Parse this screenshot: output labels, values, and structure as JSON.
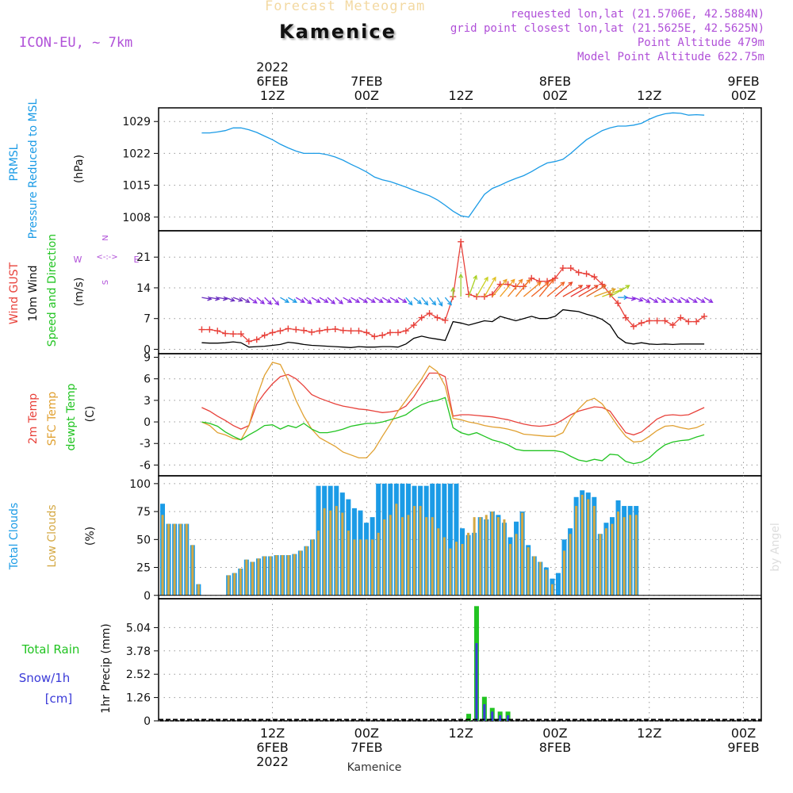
{
  "header": {
    "title_faded": "Forecast Meteogram",
    "station": "Kamenice",
    "model": "ICON-EU, ~ 7km",
    "requested": "requested lon,lat (21.5706E, 42.5884N)",
    "gridpoint": "grid point closest lon,lat (21.5625E, 42.5625N)",
    "point_alt": "Point Altitude 479m",
    "model_alt": "Model Point Altitude 622.75m",
    "watermark": "by Angel",
    "footer_station": "Kamenice"
  },
  "colors": {
    "pressure": "#1b9be6",
    "gust": "#e8413a",
    "wind": "#000000",
    "temp2m": "#e8413a",
    "sfc": "#e0a030",
    "dewpt": "#22c422",
    "total_clouds": "#1b9be6",
    "low_clouds": "#d4a843",
    "rain": "#22c422",
    "snow": "#3a3ad8",
    "purple": "#b050d8",
    "grid": "#999999"
  },
  "chart_data": {
    "type": "meteogram",
    "x_hours": {
      "start": 0,
      "end": 64,
      "step": 1,
      "note": "hours from 6FEB 2022 03Z"
    },
    "time_axis": {
      "top": [
        {
          "h": 9,
          "lines": [
            "2022",
            "6FEB",
            "12Z"
          ]
        },
        {
          "h": 21,
          "lines": [
            "7FEB",
            "00Z"
          ]
        },
        {
          "h": 33,
          "lines": [
            "12Z"
          ]
        },
        {
          "h": 45,
          "lines": [
            "8FEB",
            "00Z"
          ]
        },
        {
          "h": 57,
          "lines": [
            "12Z"
          ]
        },
        {
          "h": 69,
          "lines": [
            "9FEB",
            "00Z"
          ]
        }
      ],
      "bottom": [
        {
          "h": 9,
          "lines": [
            "12Z",
            "6FEB",
            "2022"
          ]
        },
        {
          "h": 21,
          "lines": [
            "00Z",
            "7FEB"
          ]
        },
        {
          "h": 33,
          "lines": [
            "12Z"
          ]
        },
        {
          "h": 45,
          "lines": [
            "00Z",
            "8FEB"
          ]
        },
        {
          "h": 57,
          "lines": [
            "12Z"
          ]
        },
        {
          "h": 69,
          "lines": [
            "00Z",
            "9FEB"
          ]
        }
      ]
    },
    "panels": [
      {
        "id": "pressure",
        "type": "line",
        "labels": [
          "PRMSL",
          "Pressure Reduced to MSL"
        ],
        "unit": "(hPa)",
        "ylim": [
          1005,
          1032
        ],
        "yticks": [
          1008,
          1015,
          1022,
          1029
        ],
        "series": [
          {
            "name": "PRMSL",
            "values": [
              1026.5,
              1026.5,
              1026.7,
              1027,
              1027.6,
              1027.6,
              1027.2,
              1026.6,
              1025.8,
              1025,
              1024,
              1023.2,
              1022.5,
              1022,
              1022,
              1022,
              1021.7,
              1021.2,
              1020.5,
              1019.6,
              1018.8,
              1017.9,
              1016.8,
              1016.2,
              1015.8,
              1015.2,
              1014.6,
              1013.9,
              1013.3,
              1012.7,
              1011.8,
              1010.6,
              1009.3,
              1008.3,
              1008,
              1010.5,
              1013,
              1014.3,
              1015,
              1015.8,
              1016.5,
              1017.1,
              1018,
              1019,
              1019.9,
              1020.2,
              1020.7,
              1022,
              1023.5,
              1025,
              1026,
              1027,
              1027.6,
              1028,
              1028,
              1028.2,
              1028.6,
              1029.5,
              1030.2,
              1030.7,
              1030.9,
              1030.8,
              1030.4,
              1030.5,
              1030.4
            ]
          }
        ]
      },
      {
        "id": "wind",
        "type": "line",
        "labels": [
          "Wind GUST",
          "10m Wind",
          "Speed and Direction"
        ],
        "unit": "(m/s)",
        "ylim": [
          -1,
          27
        ],
        "yticks": [
          0,
          7,
          14,
          21
        ],
        "compass": {
          "n": "N",
          "s": "S",
          "e": "E",
          "w": "W",
          "arrow": "<-:->"
        },
        "series": [
          {
            "name": "Wind GUST",
            "values": [
              4.5,
              4.5,
              4.2,
              3.6,
              3.5,
              3.5,
              1.8,
              2.2,
              3.2,
              3.8,
              4.2,
              4.7,
              4.5,
              4.3,
              3.9,
              4.2,
              4.5,
              4.6,
              4.3,
              4.2,
              4.2,
              3.8,
              2.9,
              3.2,
              3.8,
              3.8,
              4.2,
              5.5,
              7.2,
              8.2,
              7.2,
              6.6,
              12,
              24.5,
              12.5,
              12,
              12,
              12.5,
              14.8,
              14.8,
              14.3,
              14.3,
              16.2,
              15.5,
              15.5,
              16.2,
              18.5,
              18.5,
              17.5,
              17.2,
              16.5,
              14.8,
              12.5,
              10.5,
              7.2,
              5.2,
              6,
              6.5,
              6.5,
              6.5,
              5.5,
              7.2,
              6.3,
              6.3,
              7.5
            ]
          },
          {
            "name": "10m Wind",
            "values": [
              1.5,
              1.4,
              1.4,
              1.5,
              1.7,
              1.5,
              0.5,
              0.6,
              0.7,
              0.9,
              1.1,
              1.6,
              1.4,
              1.1,
              0.9,
              0.8,
              0.7,
              0.6,
              0.5,
              0.4,
              0.6,
              0.5,
              0.5,
              0.6,
              0.6,
              0.5,
              1.2,
              2.5,
              3,
              2.6,
              2.3,
              2,
              6.3,
              6,
              5.5,
              6,
              6.5,
              6.3,
              7.5,
              7,
              6.5,
              7,
              7.5,
              7,
              7,
              7.5,
              9,
              8.8,
              8.6,
              8,
              7.5,
              6.8,
              5.5,
              2.8,
              1.5,
              1.2,
              1.5,
              1.2,
              1.1,
              1.2,
              1.1,
              1.2,
              1.2,
              1.2,
              1.2
            ]
          }
        ]
      },
      {
        "id": "temp",
        "type": "line",
        "labels": [
          "2m Temp",
          "SFC Temp",
          "dewpt Temp"
        ],
        "unit": "(C)",
        "ylim": [
          -7.5,
          9.5
        ],
        "yticks": [
          -6,
          -3,
          0,
          3,
          6,
          9
        ],
        "series": [
          {
            "name": "2m Temp",
            "values": [
              2,
              1.5,
              0.8,
              0.2,
              -0.5,
              -1,
              -0.5,
              2.5,
              4,
              5.3,
              6.3,
              6.6,
              6,
              5,
              3.8,
              3.3,
              2.9,
              2.5,
              2.2,
              2,
              1.8,
              1.7,
              1.5,
              1.3,
              1.4,
              1.6,
              2.2,
              3.5,
              5.2,
              6.8,
              6.8,
              6.3,
              0.8,
              1,
              1,
              0.9,
              0.8,
              0.7,
              0.5,
              0.3,
              0,
              -0.3,
              -0.5,
              -0.6,
              -0.5,
              -0.3,
              0.3,
              1,
              1.5,
              1.8,
              2.1,
              2,
              1.5,
              0,
              -1.5,
              -1.8,
              -1.4,
              -0.5,
              0.4,
              0.9,
              1,
              0.9,
              1,
              1.5,
              2
            ]
          },
          {
            "name": "SFC Temp",
            "values": [
              0,
              -0.5,
              -1.5,
              -1.8,
              -2.3,
              -2.5,
              -0.5,
              3.5,
              6.5,
              8.3,
              8,
              5.8,
              3,
              0.8,
              -1,
              -2.2,
              -2.8,
              -3.4,
              -4.2,
              -4.6,
              -5,
              -5,
              -3.8,
              -2,
              -0.3,
              1.5,
              3,
              4.5,
              6,
              7.8,
              7,
              5,
              0.5,
              0.3,
              0,
              -0.2,
              -0.5,
              -0.7,
              -0.8,
              -1,
              -1.3,
              -1.7,
              -1.8,
              -1.9,
              -2,
              -2,
              -1.5,
              0.5,
              1.8,
              2.9,
              3.3,
              2.5,
              1,
              -0.6,
              -2,
              -2.8,
              -2.7,
              -2,
              -1.2,
              -0.6,
              -0.5,
              -0.8,
              -1,
              -0.8,
              -0.3
            ]
          },
          {
            "name": "dewpt Temp",
            "values": [
              0,
              -0.2,
              -0.6,
              -1.4,
              -2,
              -2.5,
              -1.8,
              -1.2,
              -0.5,
              -0.4,
              -1,
              -0.5,
              -0.8,
              -0.2,
              -1,
              -1.5,
              -1.5,
              -1.3,
              -1,
              -0.6,
              -0.4,
              -0.2,
              -0.2,
              0,
              0.3,
              0.6,
              1,
              1.8,
              2.4,
              2.8,
              3,
              3.4,
              -0.8,
              -1.5,
              -1.8,
              -1.5,
              -2,
              -2.5,
              -2.8,
              -3.2,
              -3.8,
              -4,
              -4,
              -4,
              -4,
              -4,
              -4.2,
              -4.8,
              -5.3,
              -5.5,
              -5.2,
              -5.4,
              -4.5,
              -4.6,
              -5.5,
              -5.8,
              -5.6,
              -5,
              -4,
              -3.2,
              -2.8,
              -2.6,
              -2.5,
              -2.1,
              -1.8
            ]
          }
        ]
      },
      {
        "id": "clouds",
        "type": "bar",
        "labels": [
          "Total Clouds",
          "Low Clouds"
        ],
        "unit": "(%)",
        "ylim": [
          -3,
          107
        ],
        "yticks": [
          0,
          25,
          50,
          75,
          100
        ],
        "series": [
          {
            "name": "Total Clouds",
            "values": [
              82,
              64,
              64,
              64,
              64,
              45,
              10,
              0,
              0,
              0,
              0,
              18,
              20,
              24,
              32,
              30,
              33,
              35,
              35,
              36,
              36,
              36,
              37,
              40,
              44,
              50,
              98,
              98,
              98,
              98,
              92,
              86,
              78,
              76,
              65,
              70,
              100,
              100,
              100,
              100,
              100,
              100,
              98,
              98,
              98,
              100,
              100,
              100,
              100,
              100,
              60,
              54,
              56,
              70,
              68,
              75,
              72,
              65,
              52,
              66,
              75,
              45,
              35,
              30,
              25,
              15,
              20,
              50,
              60,
              88,
              94,
              92,
              88,
              55,
              65,
              70,
              85,
              80,
              80,
              80
            ]
          },
          {
            "name": "Low Clouds",
            "values": [
              72,
              64,
              64,
              64,
              64,
              45,
              10,
              0,
              0,
              0,
              0,
              18,
              20,
              24,
              32,
              30,
              33,
              35,
              35,
              36,
              36,
              36,
              37,
              40,
              44,
              50,
              58,
              78,
              76,
              80,
              74,
              58,
              50,
              50,
              50,
              50,
              56,
              68,
              72,
              82,
              70,
              72,
              80,
              80,
              70,
              70,
              60,
              52,
              42,
              48,
              46,
              56,
              70,
              70,
              72,
              75,
              70,
              68,
              46,
              55,
              74,
              43,
              35,
              30,
              23,
              10,
              0,
              40,
              55,
              80,
              90,
              86,
              80,
              55,
              60,
              64,
              75,
              70,
              72,
              72
            ]
          }
        ]
      },
      {
        "id": "precip",
        "type": "bar",
        "labels": [
          "Total Rain",
          "Snow/1h",
          "[cm]"
        ],
        "unit": "1hr Precip (mm)",
        "ylim": [
          0,
          6.6
        ],
        "yticks": [
          0,
          1.26,
          2.52,
          3.78,
          5.04
        ],
        "series": [
          {
            "name": "Total Rain",
            "values": [
              0,
              0,
              0,
              0,
              0,
              0,
              0,
              0,
              0,
              0,
              0,
              0,
              0,
              0,
              0,
              0,
              0,
              0,
              0,
              0,
              0,
              0,
              0,
              0,
              0,
              0,
              0,
              0,
              0,
              0,
              0,
              0,
              0,
              0,
              0.38,
              6.2,
              1.3,
              0.7,
              0.5,
              0.5
            ]
          },
          {
            "name": "Snow",
            "values": [
              0,
              0,
              0,
              0,
              0,
              0,
              0,
              0,
              0,
              0,
              0,
              0,
              0,
              0,
              0,
              0,
              0,
              0,
              0,
              0,
              0,
              0,
              0,
              0,
              0,
              0,
              0,
              0,
              0,
              0,
              0,
              0,
              0,
              0,
              0,
              4.2,
              0.9,
              0.5,
              0.3,
              0.3
            ]
          }
        ]
      }
    ],
    "wind_arrows": {
      "start_h": 0,
      "step_h": 1,
      "dirs_deg": [
        280,
        280,
        280,
        290,
        290,
        300,
        305,
        310,
        315,
        320,
        300,
        300,
        300,
        310,
        300,
        300,
        310,
        310,
        300,
        300,
        300,
        300,
        300,
        300,
        300,
        300,
        320,
        310,
        320,
        320,
        330,
        320,
        180,
        180,
        200,
        210,
        210,
        220,
        220,
        220,
        220,
        230,
        230,
        220,
        230,
        230,
        240,
        240,
        240,
        240,
        250,
        250,
        240,
        270,
        280,
        290,
        300,
        300,
        300,
        300,
        300,
        300,
        300,
        300,
        300
      ],
      "colors": [
        "#6a2ec0",
        "#6a2ec0",
        "#6a2ec0",
        "#6a2ec0",
        "#7030c0",
        "#7030c0",
        "#8a2be2",
        "#8a2be2",
        "#8a2be2",
        "#8a2be2",
        "#1b9be6",
        "#1b9be6",
        "#8a2be2",
        "#8a2be2",
        "#8a2be2",
        "#8a2be2",
        "#8a2be2",
        "#8a2be2",
        "#8a2be2",
        "#8a2be2",
        "#8a2be2",
        "#8a2be2",
        "#8a2be2",
        "#8a2be2",
        "#8a2be2",
        "#8a2be2",
        "#1b9be6",
        "#1b9be6",
        "#1b9be6",
        "#1b9be6",
        "#1b9be6",
        "#1b9be6",
        "#9bcc30",
        "#9bcc30",
        "#a8d020",
        "#c8d020",
        "#e0c020",
        "#e8a020",
        "#f0a020",
        "#f08020",
        "#f08020",
        "#f08020",
        "#f06020",
        "#f06020",
        "#f06020",
        "#e84020",
        "#e84020",
        "#e83030",
        "#e84020",
        "#e06020",
        "#e0a020",
        "#c8c820",
        "#a8d020",
        "#1b9be6",
        "#8a2be2",
        "#8a2be2",
        "#8a2be2",
        "#8a2be2",
        "#8a2be2",
        "#8a2be2",
        "#8a2be2",
        "#8a2be2",
        "#8a2be2",
        "#8a2be2",
        "#8a2be2"
      ]
    }
  }
}
